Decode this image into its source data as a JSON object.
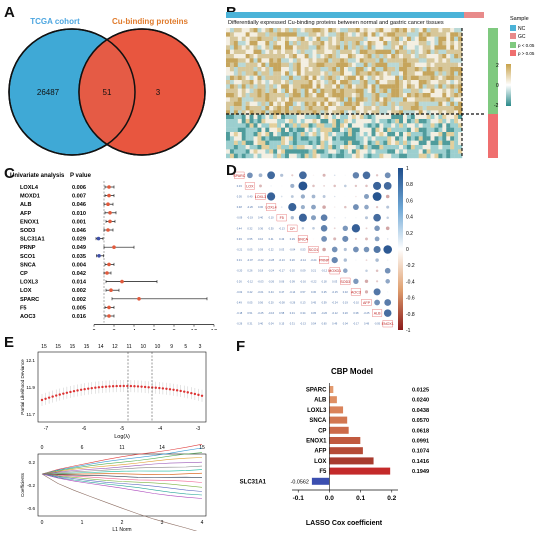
{
  "panel_a": {
    "label": "A",
    "set_left": "TCGA cohort",
    "set_right": "Cu-binding proteins",
    "only_left": "26487",
    "both": "51",
    "only_right": "3",
    "colors": {
      "left": "#3fa9d6",
      "right": "#e8563f",
      "left_text": "#4da6e0",
      "right_text": "#e07b2c"
    }
  },
  "panel_b": {
    "label": "B",
    "title": "Differentially expressed Cu-binding proteins between normal and gastric cancer tissues",
    "legend_title": "Sample",
    "legend_items": [
      "NC",
      "GC"
    ],
    "scale_max": "2",
    "scale_mid": "0",
    "scale_min": "-2",
    "sig_items": [
      "p < 0.05",
      "p > 0.05"
    ]
  },
  "panel_c": {
    "label": "C",
    "header_gene": "Univariate analysis",
    "header_p": "P value",
    "x_ticks": [
      "0",
      "2",
      "4",
      "6",
      "8",
      "10",
      "12"
    ],
    "chart_data": {
      "type": "forest",
      "genes": [
        "LOXL4",
        "MOXD1",
        "ALB",
        "AFP",
        "ENOX1",
        "SOD3",
        "SLC31A1",
        "PRNP",
        "SCO1",
        "SNCA",
        "CP",
        "LOXL3",
        "LOX",
        "SPARC",
        "F5",
        "AOC3"
      ],
      "p_values": [
        "0.006",
        "0.007",
        "0.046",
        "0.010",
        "0.001",
        "0.046",
        "0.029",
        "0.049",
        "0.035",
        "0.004",
        "0.042",
        "0.014",
        "0.002",
        "0.002",
        "0.005",
        "0.016"
      ],
      "hr": [
        1.5,
        1.5,
        1.4,
        1.6,
        1.6,
        1.4,
        0.45,
        2.0,
        0.5,
        1.5,
        1.3,
        2.8,
        1.7,
        4.5,
        1.5,
        1.5
      ],
      "lower": [
        1.1,
        1.1,
        1.0,
        1.1,
        1.2,
        1.0,
        0.2,
        1.0,
        0.25,
        1.1,
        1.0,
        1.2,
        1.2,
        1.8,
        1.1,
        1.1
      ],
      "upper": [
        2.0,
        2.0,
        1.9,
        2.2,
        2.1,
        1.9,
        0.9,
        4.0,
        0.95,
        2.0,
        1.7,
        6.3,
        2.5,
        11.3,
        2.0,
        2.0
      ],
      "xlim": [
        0,
        12
      ]
    }
  },
  "panel_d": {
    "label": "D",
    "labels": [
      "SPARC",
      "LOX",
      "LOXL3",
      "LOXL4",
      "F5",
      "CP",
      "SNCA",
      "SCO1",
      "PRNP",
      "MOXD1",
      "SOD3",
      "AOC3",
      "AFP",
      "ALB",
      "ENOX1"
    ],
    "scale": [
      "1",
      "0.8",
      "0.6",
      "0.4",
      "0.2",
      "0",
      "-0.2",
      "-0.4",
      "-0.6",
      "-0.8",
      "-1"
    ]
  },
  "panel_e": {
    "label": "E",
    "top_numbers": [
      "15",
      "15",
      "15",
      "15",
      "14",
      "12",
      "11",
      "10",
      "10",
      "9",
      "5",
      "3"
    ],
    "top_ylabel": "Partial Likelihood Deviance",
    "top_yticks": [
      "12.1",
      "11.9",
      "11.7"
    ],
    "top_xticks": [
      "-7",
      "-6",
      "-5",
      "-4",
      "-3"
    ],
    "top_xlabel": "Log(λ)",
    "bottom_numbers": [
      "0",
      "6",
      "11",
      "14",
      "15"
    ],
    "bottom_ylabel": "Coefficients",
    "bottom_yticks": [
      "0.2",
      "-0.2",
      "-0.6"
    ],
    "bottom_xticks": [
      "0",
      "1",
      "2",
      "3",
      "4"
    ],
    "bottom_xlabel": "L1 Norm"
  },
  "panel_f": {
    "label": "F",
    "title": "CBP Model",
    "xlabel": "LASSO Cox coefficient",
    "x_ticks": [
      "-0.1",
      "0.0",
      "0.1",
      "0.2"
    ],
    "chart_data": {
      "type": "bar",
      "categories": [
        "SPARC",
        "ALB",
        "LOXL3",
        "SNCA",
        "CP",
        "ENOX1",
        "AFP",
        "LOX",
        "F5",
        "SLC31A1"
      ],
      "values": [
        0.0125,
        0.024,
        0.0438,
        0.057,
        0.0618,
        0.0991,
        0.1074,
        0.1416,
        0.1949,
        -0.0562
      ],
      "value_labels": [
        "0.0125",
        "0.0240",
        "0.0438",
        "0.0570",
        "0.0618",
        "0.0991",
        "0.1074",
        "0.1416",
        "0.1949",
        "-0.0562"
      ],
      "xlim": [
        -0.12,
        0.22
      ],
      "colors": [
        "#e39a6e",
        "#df8f63",
        "#da835a",
        "#d27751",
        "#cc6a49",
        "#c15a3f",
        "#b54b36",
        "#a83b2e",
        "#c42a2a",
        "#3b4fb0"
      ]
    }
  }
}
